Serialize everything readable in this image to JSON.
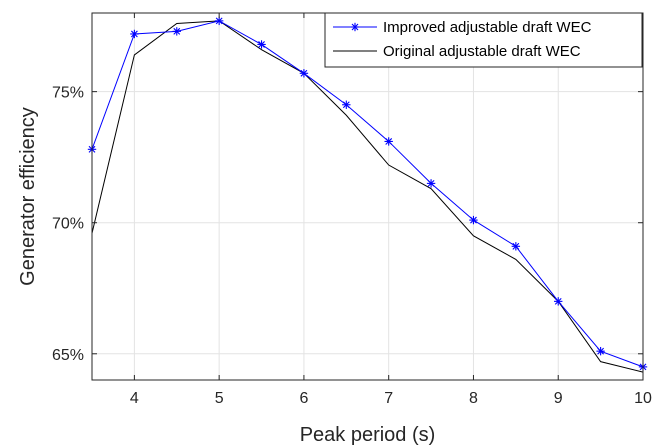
{
  "chart_data": {
    "type": "line",
    "xlabel": "Peak period (s)",
    "ylabel": "Generator efficiency",
    "xlim": [
      3.5,
      10
    ],
    "ylim": [
      64.0,
      78.0
    ],
    "xticks": [
      4,
      5,
      6,
      7,
      8,
      9,
      10
    ],
    "xtick_labels": [
      "4",
      "5",
      "6",
      "7",
      "8",
      "9",
      "10"
    ],
    "yticks": [
      65,
      70,
      75
    ],
    "ytick_labels": [
      "65%",
      "70%",
      "75%"
    ],
    "grid": true,
    "legend_position": "top-right",
    "series": [
      {
        "name": "Improved adjustable draft WEC",
        "color": "#0000ff",
        "marker": "asterisk",
        "x": [
          3.5,
          4,
          4.5,
          5,
          5.5,
          6,
          6.5,
          7,
          7.5,
          8,
          8.5,
          9,
          9.5,
          10
        ],
        "y": [
          72.8,
          77.2,
          77.3,
          77.7,
          76.8,
          75.7,
          74.5,
          73.1,
          71.5,
          70.1,
          69.1,
          67.0,
          65.1,
          64.5
        ]
      },
      {
        "name": "Original adjustable draft WEC",
        "color": "#000000",
        "marker": "none",
        "x": [
          3.5,
          4,
          4.5,
          5,
          5.5,
          6,
          6.5,
          7,
          7.5,
          8,
          8.5,
          9,
          9.5,
          10
        ],
        "y": [
          69.6,
          76.4,
          77.6,
          77.7,
          76.6,
          75.7,
          74.1,
          72.2,
          71.3,
          69.5,
          68.6,
          67.0,
          64.7,
          64.3
        ]
      }
    ]
  }
}
